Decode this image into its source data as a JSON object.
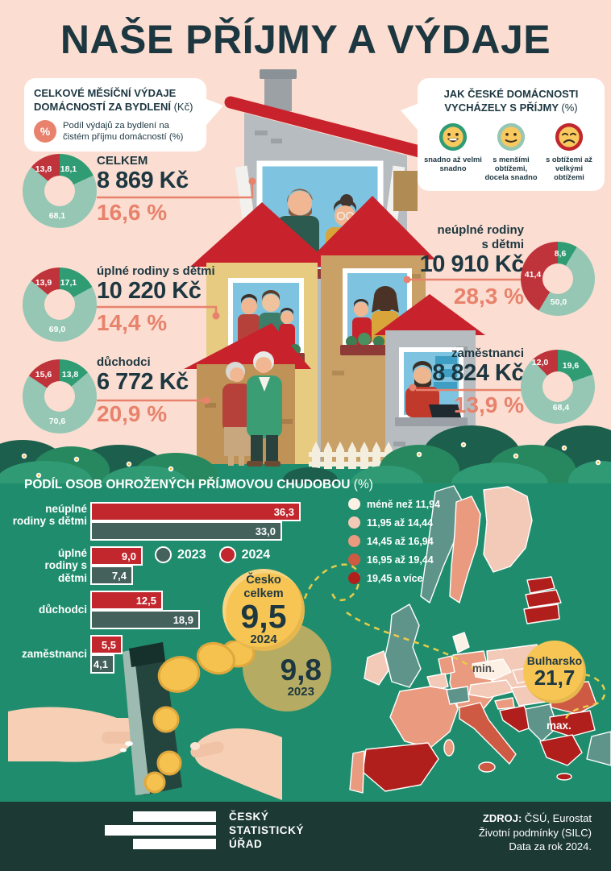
{
  "title": "NAŠE PŘÍJMY A VÝDAJE",
  "housing_callout": {
    "title": "CELKOVÉ MĚSÍČNÍ VÝDAJE DOMÁCNOSTÍ ZA BYDLENÍ",
    "unit": "(Kč)",
    "percent_symbol": "%",
    "subtitle": "Podíl výdajů za bydlení na čistém příjmu domácností (%)"
  },
  "income_callout": {
    "title": "JAK ČESKÉ DOMÁCNOSTI VYCHÁZELY S PŘÍJMY",
    "unit": "(%)",
    "faces": [
      {
        "mood": "happy",
        "label": "snadno až velmi snadno"
      },
      {
        "mood": "neutral",
        "label": "s menšími obtížemi, docela snadno"
      },
      {
        "mood": "sad",
        "label": "s obtížemi až velkými obtížemi"
      }
    ]
  },
  "housing_donuts": [
    {
      "group": "CELKEM",
      "amount": "8 869 Kč",
      "share": "16,6 %",
      "segments": {
        "easily": "18,1",
        "minor": "68,1",
        "difficulty": "13,8"
      }
    },
    {
      "group": "úplné rodiny s dětmi",
      "amount": "10 220 Kč",
      "share": "14,4 %",
      "segments": {
        "easily": "17,1",
        "minor": "69,0",
        "difficulty": "13,9"
      }
    },
    {
      "group": "důchodci",
      "amount": "6 772 Kč",
      "share": "20,9 %",
      "segments": {
        "easily": "13,8",
        "minor": "70,6",
        "difficulty": "15,6"
      }
    },
    {
      "group": "neúplné rodiny s dětmi",
      "amount": "10 910 Kč",
      "share": "28,3 %",
      "segments": {
        "easily": "8,6",
        "minor": "50,0",
        "difficulty": "41,4"
      }
    },
    {
      "group": "zaměstnanci",
      "amount": "8 824 Kč",
      "share": "13,9 %",
      "segments": {
        "easily": "19,6",
        "minor": "68,4",
        "difficulty": "12,0"
      }
    }
  ],
  "poverty": {
    "heading": "PODÍL OSOB OHROŽENÝCH PŘÍJMOVOU CHUDOBOU",
    "unit": "(%)",
    "legend": [
      {
        "label": "2023"
      },
      {
        "label": "2024"
      }
    ],
    "groups": [
      {
        "label": "neúplné rodiny s dětmi",
        "y2024": "36,3",
        "y2023": "33,0"
      },
      {
        "label": "úplné rodiny s dětmi",
        "y2024": "9,0",
        "y2023": "7,4"
      },
      {
        "label": "důchodci",
        "y2024": "12,5",
        "y2023": "18,9"
      },
      {
        "label": "zaměstnanci",
        "y2024": "5,5",
        "y2023": "4,1"
      }
    ],
    "czech_total": {
      "label": "Česko celkem",
      "value": "9,5",
      "year": "2024"
    },
    "czech_prev": {
      "value": "9,8",
      "year": "2023"
    }
  },
  "map": {
    "legend": [
      {
        "label": "méně než 11,94",
        "color": "#fdf0e5"
      },
      {
        "label": "11,95 až 14,44",
        "color": "#f3c9b8"
      },
      {
        "label": "14,45 až 16,94",
        "color": "#e99a7f"
      },
      {
        "label": "16,95 až 19,44",
        "color": "#cf5a43"
      },
      {
        "label": "19,45 a více",
        "color": "#b01f1c"
      }
    ],
    "min_label": "min.",
    "max_label": "max.",
    "max_country": "Bulharsko",
    "max_value": "21,7"
  },
  "footer": {
    "logo": [
      "ČESKÝ",
      "STATISTICKÝ",
      "ÚŘAD"
    ],
    "source_label": "ZDROJ:",
    "source_value": "ČSÚ, Eurostat",
    "source_line2": "Životní podmínky (SILC)",
    "source_line3": "Data za rok 2024."
  },
  "colors": {
    "bg_pink": "#fbded1",
    "bg_green": "#1f8d6d",
    "footer_bg": "#1c3933",
    "ink": "#1d3741",
    "accent": "#e8826c",
    "donut_green": "#2f9c74",
    "donut_light": "#95c7b4",
    "donut_red": "#bf333b",
    "bar_red": "#c1272d",
    "bar_teal": "#44615c",
    "circle_yellow": "#f7c554",
    "circle_olive": "#b5ab62",
    "dash_yellow": "#e8cc4a",
    "map_noneu": "#5f948b"
  },
  "chart_data": [
    {
      "type": "pie",
      "title": "Celkové měsíční výdaje domácností za bydlení (Kč) / Jak české domácnosti vycházely s příjmy (%)",
      "categories": [
        "snadno až velmi snadno",
        "s menšími obtížemi, docela snadno",
        "s obtížemi až velkými obtížemi"
      ],
      "series": [
        {
          "name": "CELKEM",
          "values": [
            18.1,
            68.1,
            13.8
          ],
          "monthly_housing_expense_kc": 8869,
          "housing_share_of_income_pct": 16.6
        },
        {
          "name": "úplné rodiny s dětmi",
          "values": [
            17.1,
            69.0,
            13.9
          ],
          "monthly_housing_expense_kc": 10220,
          "housing_share_of_income_pct": 14.4
        },
        {
          "name": "důchodci",
          "values": [
            13.8,
            70.6,
            15.6
          ],
          "monthly_housing_expense_kc": 6772,
          "housing_share_of_income_pct": 20.9
        },
        {
          "name": "neúplné rodiny s dětmi",
          "values": [
            8.6,
            50.0,
            41.4
          ],
          "monthly_housing_expense_kc": 10910,
          "housing_share_of_income_pct": 28.3
        },
        {
          "name": "zaměstnanci",
          "values": [
            19.6,
            68.4,
            12.0
          ],
          "monthly_housing_expense_kc": 8824,
          "housing_share_of_income_pct": 13.9
        }
      ]
    },
    {
      "type": "bar",
      "orientation": "horizontal",
      "title": "Podíl osob ohrožených příjmovou chudobou (%)",
      "categories": [
        "neúplné rodiny s dětmi",
        "úplné rodiny s dětmi",
        "důchodci",
        "zaměstnanci"
      ],
      "series": [
        {
          "name": "2024",
          "values": [
            36.3,
            9.0,
            12.5,
            5.5
          ]
        },
        {
          "name": "2023",
          "values": [
            33.0,
            7.4,
            18.9,
            4.1
          ]
        }
      ],
      "annotations": [
        {
          "label": "Česko celkem",
          "value": 9.5,
          "year": "2024"
        },
        {
          "label": "Česko celkem",
          "value": 9.8,
          "year": "2023"
        }
      ],
      "xlim": [
        0,
        40
      ],
      "grid": false,
      "legend_position": "inside-top"
    },
    {
      "type": "heatmap",
      "subtype": "choropleth-europe",
      "title": "Podíl osob ohrožených příjmovou chudobou v EU (%)",
      "legend_bins": [
        "méně než 11,94",
        "11,95 až 14,44",
        "14,45 až 16,94",
        "16,95 až 19,44",
        "19,45 a více"
      ],
      "highlights": [
        {
          "country": "Česko",
          "role": "min.",
          "value": 9.5
        },
        {
          "country": "Bulharsko",
          "role": "max.",
          "value": 21.7
        }
      ]
    }
  ]
}
